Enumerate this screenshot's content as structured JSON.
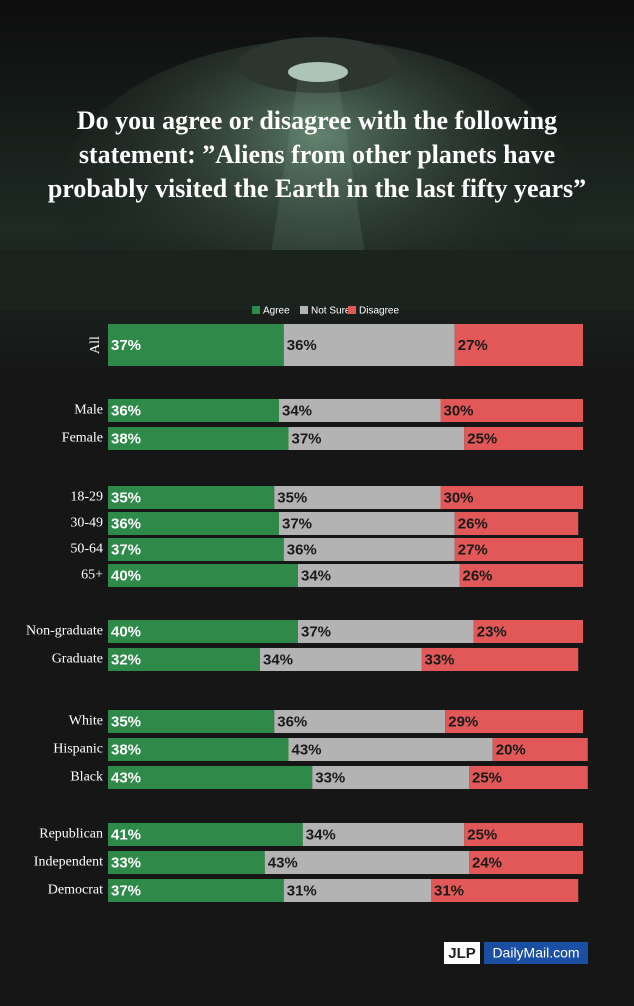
{
  "chart_data": {
    "type": "stacked-bar",
    "title": "Do you agree or disagree with the following statement: ”Aliens from other planets have probably visited the Earth in the last fifty years”",
    "categories": [
      "All",
      "Male",
      "Female",
      "18-29",
      "30-49",
      "50-64",
      "65+",
      "Non-graduate",
      "Graduate",
      "White",
      "Hispanic",
      "Black",
      "Republican",
      "Independent",
      "Democrat"
    ],
    "series": [
      {
        "name": "Agree",
        "color": "#2f8a4a",
        "values": [
          37,
          36,
          38,
          35,
          36,
          37,
          40,
          40,
          32,
          35,
          38,
          43,
          41,
          33,
          37
        ],
        "value_labels": [
          "37%",
          "36%",
          "38%",
          "35%",
          "36%",
          "37%",
          "40%",
          "40%",
          "32%",
          "35%",
          "38%",
          "43%",
          "41%",
          "33%",
          "37%"
        ]
      },
      {
        "name": "Not Sure",
        "color": "#b3b3b3",
        "values": [
          36,
          34,
          37,
          35,
          37,
          36,
          34,
          37,
          34,
          36,
          43,
          33,
          34,
          43,
          31
        ],
        "value_labels": [
          "36%",
          "34%",
          "37%",
          "35%",
          "37%",
          "36%",
          "34%",
          "37%",
          "34%",
          "36%",
          "43%",
          "33%",
          "34%",
          "43%",
          "31%"
        ]
      },
      {
        "name": "Disagree",
        "color": "#e25858",
        "values": [
          27,
          30,
          25,
          30,
          26,
          27,
          26,
          23,
          33,
          29,
          20,
          25,
          25,
          24,
          31
        ],
        "value_labels": [
          "27%",
          "30%",
          "25%",
          "30%",
          "26%",
          "27%",
          "26%",
          "23%",
          "33%",
          "29%",
          "20%",
          "25%",
          "25%",
          "24%",
          "31%"
        ]
      }
    ]
  },
  "logos": [
    "JLP",
    "DailyMail.com"
  ]
}
